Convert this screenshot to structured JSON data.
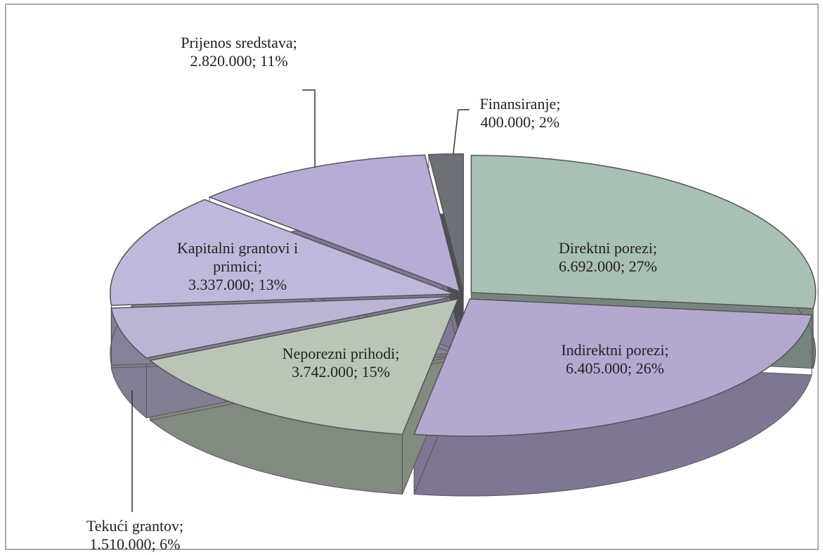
{
  "chart_data": {
    "type": "pie",
    "categories": [
      "Direktni porezi;",
      "Indirektni porezi;",
      "Neporezni prihodi;",
      "Tekući grantov;",
      "Kapitalni grantovi i primici;",
      "Prijenos sredstava;",
      "Finansiranje;"
    ],
    "values": [
      6692000,
      6405000,
      3742000,
      1510000,
      3337000,
      2820000,
      400000
    ],
    "value_labels": [
      "6.692.000; 27%",
      "6.405.000; 26%",
      "3.742.000; 15%",
      "1.510.000; 6%",
      "3.337.000; 13%",
      "2.820.000; 11%",
      "400.000; 2%"
    ],
    "colors": [
      "#a9c0b4",
      "#b4a8d0",
      "#b9c6b6",
      "#bcb4d4",
      "#c0b8da",
      "#b8acd6",
      "#6e7078"
    ]
  }
}
